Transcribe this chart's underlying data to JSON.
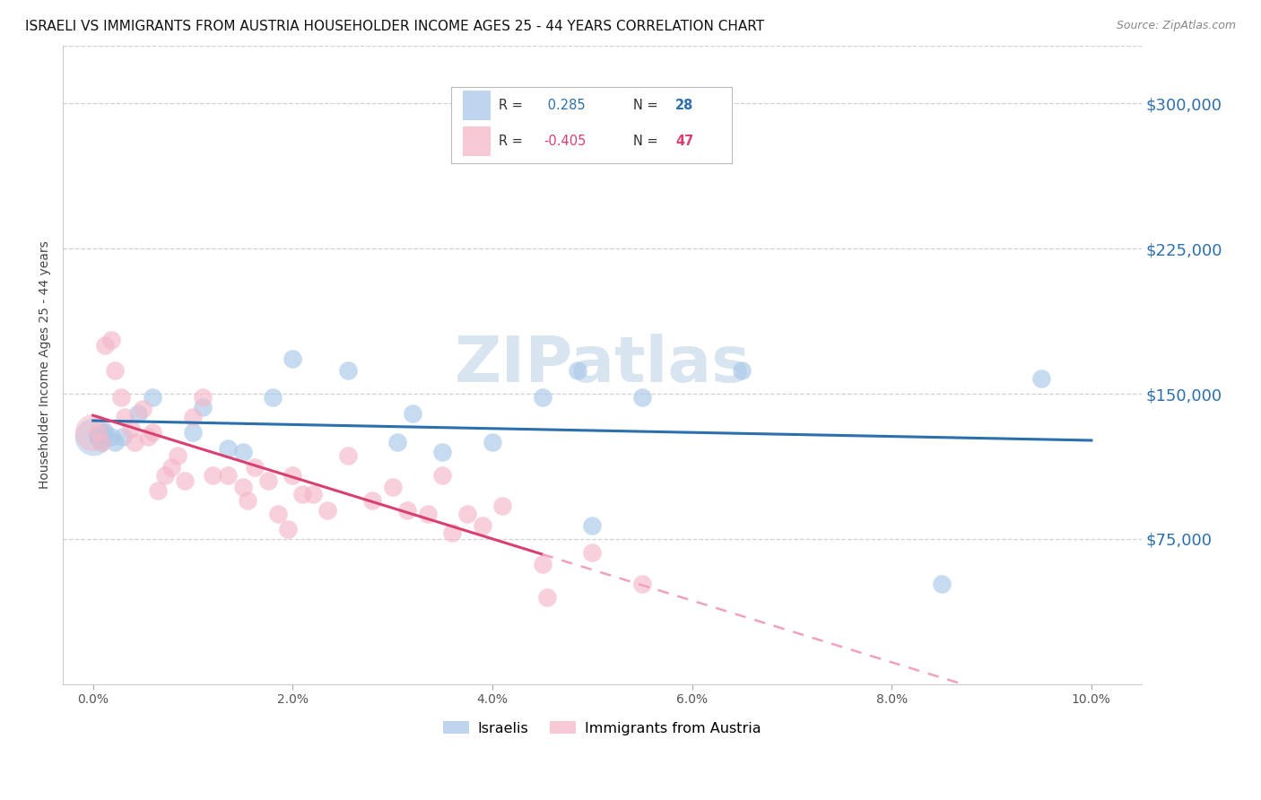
{
  "title": "ISRAELI VS IMMIGRANTS FROM AUSTRIA HOUSEHOLDER INCOME AGES 25 - 44 YEARS CORRELATION CHART",
  "source": "Source: ZipAtlas.com",
  "ylabel": "Householder Income Ages 25 - 44 years",
  "xlabel_ticks": [
    "0.0%",
    "2.0%",
    "4.0%",
    "6.0%",
    "8.0%",
    "10.0%"
  ],
  "xlabel_vals": [
    0.0,
    2.0,
    4.0,
    6.0,
    8.0,
    10.0
  ],
  "ytick_labels": [
    "$75,000",
    "$150,000",
    "$225,000",
    "$300,000"
  ],
  "ytick_vals": [
    75000,
    150000,
    225000,
    300000
  ],
  "ylim": [
    0,
    330000
  ],
  "xlim": [
    -0.3,
    10.5
  ],
  "israeli_R": 0.285,
  "israeli_N": 28,
  "austrian_R": -0.405,
  "austrian_N": 47,
  "israeli_color": "#a8c8e8",
  "austrian_color": "#f4b8c8",
  "watermark": "ZIPatlas",
  "israeli_x": [
    0.05,
    0.08,
    0.12,
    0.18,
    0.22,
    0.3,
    0.45,
    0.6,
    1.0,
    1.1,
    1.35,
    1.5,
    1.8,
    2.0,
    2.55,
    3.05,
    3.2,
    3.5,
    4.0,
    4.5,
    4.85,
    5.0,
    5.5,
    6.5,
    8.5,
    9.5
  ],
  "israeli_y": [
    128000,
    125000,
    130000,
    128000,
    125000,
    128000,
    140000,
    148000,
    130000,
    143000,
    122000,
    120000,
    148000,
    168000,
    162000,
    125000,
    140000,
    120000,
    125000,
    148000,
    162000,
    82000,
    148000,
    162000,
    52000,
    158000
  ],
  "austrian_x": [
    0.05,
    0.08,
    0.12,
    0.18,
    0.22,
    0.28,
    0.32,
    0.38,
    0.42,
    0.5,
    0.55,
    0.6,
    0.65,
    0.72,
    0.78,
    0.85,
    0.92,
    1.0,
    1.1,
    1.2,
    1.35,
    1.5,
    1.55,
    1.62,
    1.75,
    1.85,
    1.95,
    2.0,
    2.1,
    2.2,
    2.35,
    2.55,
    2.8,
    3.0,
    3.15,
    3.35,
    3.5,
    3.6,
    3.75,
    3.9,
    4.1,
    4.5,
    4.55,
    5.0,
    5.5
  ],
  "austrian_y": [
    130000,
    125000,
    175000,
    178000,
    162000,
    148000,
    138000,
    132000,
    125000,
    142000,
    128000,
    130000,
    100000,
    108000,
    112000,
    118000,
    105000,
    138000,
    148000,
    108000,
    108000,
    102000,
    95000,
    112000,
    105000,
    88000,
    80000,
    108000,
    98000,
    98000,
    90000,
    118000,
    95000,
    102000,
    90000,
    88000,
    108000,
    78000,
    88000,
    82000,
    92000,
    62000,
    45000,
    68000,
    52000
  ],
  "large_israeli_y": 128000,
  "large_austrian_y": 130000,
  "background_color": "#ffffff",
  "grid_color": "#d0d0d0",
  "title_fontsize": 11,
  "source_fontsize": 9,
  "axis_label_fontsize": 10,
  "tick_fontsize": 10,
  "watermark_fontsize": 52,
  "watermark_color": "#d8e4f0",
  "israeli_regression_color": "#2c6fad",
  "austrian_regression_color": "#d94070",
  "austrian_regression_dashed_color": "#f0a0c0",
  "legend_R_color": "#2c6fad",
  "legend_N_color": "#2c6fad",
  "legend_R2_color": "#d94070",
  "legend_N2_color": "#d94070",
  "right_tick_color": "#2c6fad"
}
